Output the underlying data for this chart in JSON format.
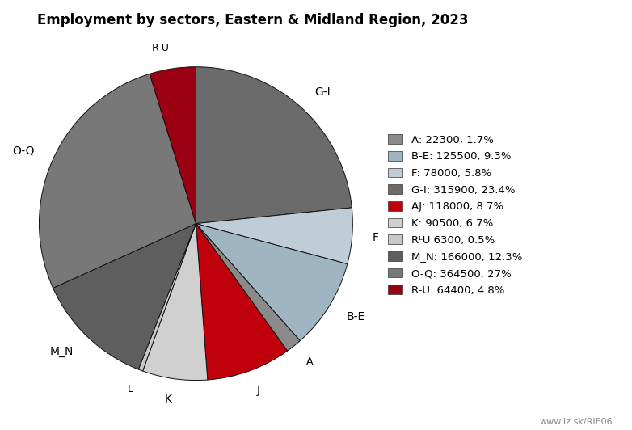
{
  "title": "Employment by sectors, Eastern & Midland Region, 2023",
  "watermark": "www.iz.sk/RIE06",
  "background_color": "#ffffff",
  "legend_labels": [
    "A: 22300, 1.7%",
    "B-E: 125500, 9.3%",
    "F: 78000, 5.8%",
    "G-I: 315900, 23.4%",
    "AJ: 118000, 8.7%",
    "K: 90500, 6.7%",
    "RᴸU 6300, 0.5%",
    "M_N: 166000, 12.3%",
    "O-Q: 364500, 27%",
    "R-U: 64400, 4.8%"
  ],
  "pie_labels": [
    "G-I",
    "F",
    "B-E",
    "A",
    "J",
    "K",
    "L",
    "M_N",
    "O-Q",
    "R-U"
  ],
  "pie_values": [
    315900,
    78000,
    125500,
    22300,
    118000,
    90500,
    6300,
    166000,
    364500,
    64400
  ],
  "pie_colors": [
    "#6b6b6b",
    "#c0cdd6",
    "#9fb5c2",
    "#8a8a8a",
    "#c0000b",
    "#d0d0d0",
    "#c8c8c8",
    "#5e5e5e",
    "#787878",
    "#9b0012"
  ],
  "startangle": 90,
  "title_fontsize": 12,
  "label_fontsize": 10,
  "legend_fontsize": 9.5,
  "watermark_fontsize": 8
}
